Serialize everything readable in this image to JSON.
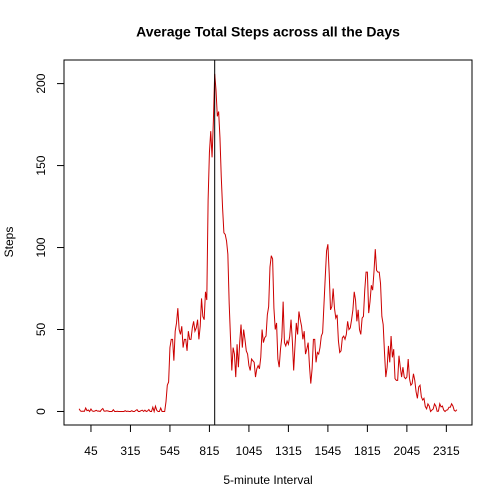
{
  "chart_data": {
    "type": "line",
    "title": "Average Total Steps across all the Days",
    "xlabel": "5-minute Interval",
    "ylabel": "Steps",
    "color": "#cc0000",
    "vline": 104,
    "vline_color": "#000000",
    "xlim": [
      -10.48,
      299.48
    ],
    "ylim": [
      -8.25,
      214.4
    ],
    "xticks": [
      {
        "value": 10,
        "label": "45"
      },
      {
        "value": 40,
        "label": "315"
      },
      {
        "value": 70,
        "label": "545"
      },
      {
        "value": 100,
        "label": "815"
      },
      {
        "value": 130,
        "label": "1045"
      },
      {
        "value": 160,
        "label": "1315"
      },
      {
        "value": 190,
        "label": "1545"
      },
      {
        "value": 220,
        "label": "1815"
      },
      {
        "value": 250,
        "label": "2045"
      },
      {
        "value": 280,
        "label": "2315"
      }
    ],
    "yticks": [
      0,
      50,
      100,
      150,
      200
    ],
    "x": [
      1,
      2,
      3,
      4,
      5,
      6,
      7,
      8,
      9,
      10,
      11,
      12,
      13,
      14,
      15,
      16,
      17,
      18,
      19,
      20,
      21,
      22,
      23,
      24,
      25,
      26,
      27,
      28,
      29,
      30,
      31,
      32,
      33,
      34,
      35,
      36,
      37,
      38,
      39,
      40,
      41,
      42,
      43,
      44,
      45,
      46,
      47,
      48,
      49,
      50,
      51,
      52,
      53,
      54,
      55,
      56,
      57,
      58,
      59,
      60,
      61,
      62,
      63,
      64,
      65,
      66,
      67,
      68,
      69,
      70,
      71,
      72,
      73,
      74,
      75,
      76,
      77,
      78,
      79,
      80,
      81,
      82,
      83,
      84,
      85,
      86,
      87,
      88,
      89,
      90,
      91,
      92,
      93,
      94,
      95,
      96,
      97,
      98,
      99,
      100,
      101,
      102,
      103,
      104,
      105,
      106,
      107,
      108,
      109,
      110,
      111,
      112,
      113,
      114,
      115,
      116,
      117,
      118,
      119,
      120,
      121,
      122,
      123,
      124,
      125,
      126,
      127,
      128,
      129,
      130,
      131,
      132,
      133,
      134,
      135,
      136,
      137,
      138,
      139,
      140,
      141,
      142,
      143,
      144,
      145,
      146,
      147,
      148,
      149,
      150,
      151,
      152,
      153,
      154,
      155,
      156,
      157,
      158,
      159,
      160,
      161,
      162,
      163,
      164,
      165,
      166,
      167,
      168,
      169,
      170,
      171,
      172,
      173,
      174,
      175,
      176,
      177,
      178,
      179,
      180,
      181,
      182,
      183,
      184,
      185,
      186,
      187,
      188,
      189,
      190,
      191,
      192,
      193,
      194,
      195,
      196,
      197,
      198,
      199,
      200,
      201,
      202,
      203,
      204,
      205,
      206,
      207,
      208,
      209,
      210,
      211,
      212,
      213,
      214,
      215,
      216,
      217,
      218,
      219,
      220,
      221,
      222,
      223,
      224,
      225,
      226,
      227,
      228,
      229,
      230,
      231,
      232,
      233,
      234,
      235,
      236,
      237,
      238,
      239,
      240,
      241,
      242,
      243,
      244,
      245,
      246,
      247,
      248,
      249,
      250,
      251,
      252,
      253,
      254,
      255,
      256,
      257,
      258,
      259,
      260,
      261,
      262,
      263,
      264,
      265,
      266,
      267,
      268,
      269,
      270,
      271,
      272,
      273,
      274,
      275,
      276,
      277,
      278,
      279,
      280,
      281,
      282,
      283,
      284,
      285,
      286,
      287,
      288
    ],
    "values": [
      1.7,
      0.3,
      0.1,
      0.2,
      0.1,
      2.1,
      0.5,
      0.9,
      0,
      1.5,
      0.3,
      0.1,
      0.3,
      0.7,
      0.2,
      0.3,
      0,
      1.1,
      1.8,
      0.2,
      0.2,
      0.4,
      0.3,
      0,
      0,
      0,
      1.1,
      0,
      0,
      0.1,
      0,
      0,
      0,
      0,
      0,
      0.5,
      0,
      0.2,
      0,
      0,
      0.5,
      0,
      0,
      0.6,
      1.1,
      0,
      0,
      0.5,
      0.8,
      0,
      0.8,
      0,
      0.3,
      1.2,
      0,
      0,
      2.6,
      0,
      3.2,
      0.7,
      0,
      0,
      2.1,
      0,
      0,
      0,
      6,
      16,
      18,
      39,
      44,
      44,
      31,
      49,
      54,
      63,
      50,
      47,
      52,
      39,
      44,
      44,
      37,
      49,
      44,
      44,
      51,
      55,
      49,
      51,
      56,
      44,
      52,
      69,
      58,
      56,
      73,
      68,
      129,
      158,
      171,
      155,
      177,
      206,
      196,
      180,
      183,
      167,
      143,
      124,
      109,
      108,
      104,
      96,
      66,
      45,
      25,
      39,
      35,
      21,
      41,
      27,
      42,
      53,
      39,
      50,
      44,
      37,
      35,
      28,
      25,
      32,
      31,
      30,
      21,
      26,
      28,
      26,
      33,
      50,
      42,
      45,
      46,
      59,
      64,
      88,
      95,
      93,
      63,
      50,
      54,
      32,
      27,
      38,
      45,
      67,
      42,
      40,
      43,
      41,
      46,
      56,
      43,
      25,
      40,
      54,
      47,
      61,
      56,
      52,
      44,
      49,
      35,
      38,
      42,
      28,
      17,
      26,
      44,
      44,
      30,
      36,
      35,
      39,
      46,
      48,
      65,
      82,
      98,
      102,
      84,
      62,
      64,
      75,
      63,
      57,
      59,
      43,
      36,
      37,
      45,
      46,
      44,
      47,
      55,
      50,
      51,
      56,
      62,
      73,
      68,
      55,
      62,
      50,
      47,
      57,
      58,
      74,
      85,
      85,
      60,
      67,
      77,
      74,
      85,
      99,
      86,
      85,
      85,
      78,
      58,
      53,
      36,
      21,
      27,
      40,
      30,
      46,
      33,
      38,
      20,
      19,
      19,
      34,
      27,
      21,
      27,
      21,
      20,
      21,
      32,
      20,
      16,
      17,
      23,
      19,
      12,
      8,
      15,
      16,
      9,
      7,
      8,
      3,
      1.6,
      4.6,
      3.3,
      0,
      0.8,
      1.5,
      4.6,
      3.3,
      0.1,
      0.2,
      4.7,
      2.8,
      3.3,
      0.8,
      0,
      0.8,
      1,
      2.6,
      2.6,
      4.7,
      3.3,
      0.6,
      0.2,
      1.1
    ]
  }
}
